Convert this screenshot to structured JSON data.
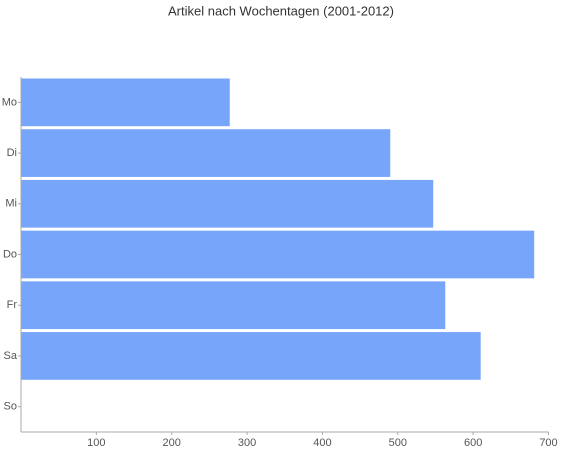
{
  "chart_data": {
    "type": "bar",
    "orientation": "horizontal",
    "title": "Artikel nach Wochentagen (2001-2012)",
    "categories": [
      "Mo",
      "Di",
      "Mi",
      "Do",
      "Fr",
      "Sa",
      "So"
    ],
    "values": [
      277,
      490,
      547,
      681,
      563,
      610,
      0
    ],
    "color": "#76a5fa",
    "xlim": [
      0,
      700
    ],
    "xticks": [
      100,
      200,
      300,
      400,
      500,
      600,
      700
    ],
    "grid": false
  }
}
